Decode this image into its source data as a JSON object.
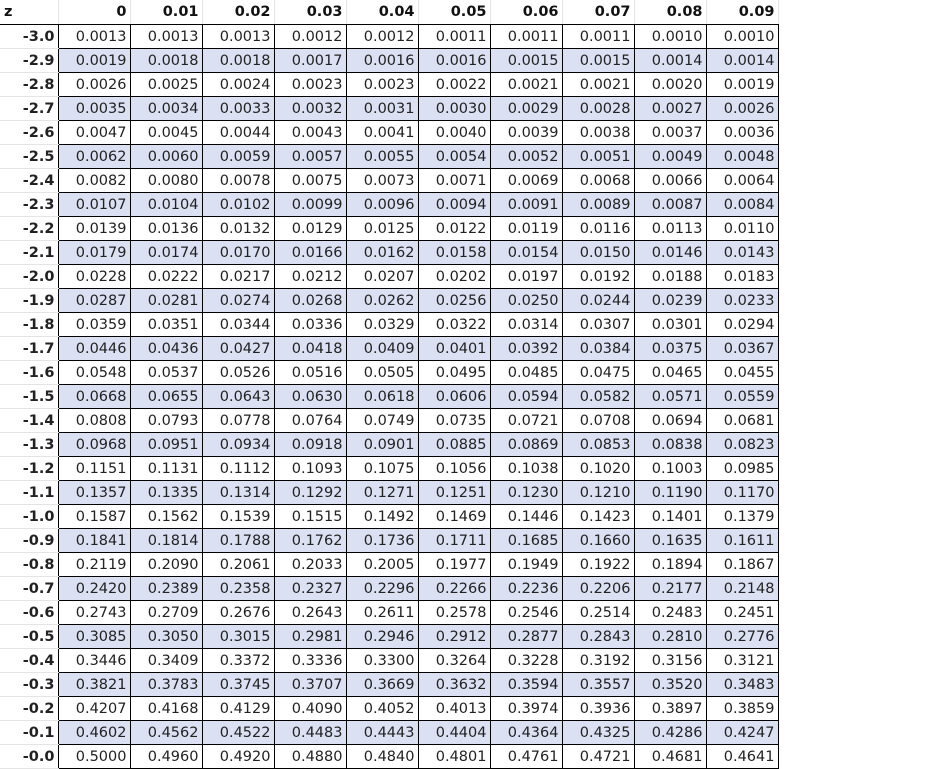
{
  "header": {
    "z_label": "z",
    "columns": [
      "0",
      "0.01",
      "0.02",
      "0.03",
      "0.04",
      "0.05",
      "0.06",
      "0.07",
      "0.08",
      "0.09"
    ]
  },
  "colors": {
    "alt_row": "#dbe0f3",
    "border": "#000000"
  },
  "rows": [
    {
      "z": "-3.0",
      "values": [
        "0.0013",
        "0.0013",
        "0.0013",
        "0.0012",
        "0.0012",
        "0.0011",
        "0.0011",
        "0.0011",
        "0.0010",
        "0.0010"
      ]
    },
    {
      "z": "-2.9",
      "values": [
        "0.0019",
        "0.0018",
        "0.0018",
        "0.0017",
        "0.0016",
        "0.0016",
        "0.0015",
        "0.0015",
        "0.0014",
        "0.0014"
      ]
    },
    {
      "z": "-2.8",
      "values": [
        "0.0026",
        "0.0025",
        "0.0024",
        "0.0023",
        "0.0023",
        "0.0022",
        "0.0021",
        "0.0021",
        "0.0020",
        "0.0019"
      ]
    },
    {
      "z": "-2.7",
      "values": [
        "0.0035",
        "0.0034",
        "0.0033",
        "0.0032",
        "0.0031",
        "0.0030",
        "0.0029",
        "0.0028",
        "0.0027",
        "0.0026"
      ]
    },
    {
      "z": "-2.6",
      "values": [
        "0.0047",
        "0.0045",
        "0.0044",
        "0.0043",
        "0.0041",
        "0.0040",
        "0.0039",
        "0.0038",
        "0.0037",
        "0.0036"
      ]
    },
    {
      "z": "-2.5",
      "values": [
        "0.0062",
        "0.0060",
        "0.0059",
        "0.0057",
        "0.0055",
        "0.0054",
        "0.0052",
        "0.0051",
        "0.0049",
        "0.0048"
      ]
    },
    {
      "z": "-2.4",
      "values": [
        "0.0082",
        "0.0080",
        "0.0078",
        "0.0075",
        "0.0073",
        "0.0071",
        "0.0069",
        "0.0068",
        "0.0066",
        "0.0064"
      ]
    },
    {
      "z": "-2.3",
      "values": [
        "0.0107",
        "0.0104",
        "0.0102",
        "0.0099",
        "0.0096",
        "0.0094",
        "0.0091",
        "0.0089",
        "0.0087",
        "0.0084"
      ]
    },
    {
      "z": "-2.2",
      "values": [
        "0.0139",
        "0.0136",
        "0.0132",
        "0.0129",
        "0.0125",
        "0.0122",
        "0.0119",
        "0.0116",
        "0.0113",
        "0.0110"
      ]
    },
    {
      "z": "-2.1",
      "values": [
        "0.0179",
        "0.0174",
        "0.0170",
        "0.0166",
        "0.0162",
        "0.0158",
        "0.0154",
        "0.0150",
        "0.0146",
        "0.0143"
      ]
    },
    {
      "z": "-2.0",
      "values": [
        "0.0228",
        "0.0222",
        "0.0217",
        "0.0212",
        "0.0207",
        "0.0202",
        "0.0197",
        "0.0192",
        "0.0188",
        "0.0183"
      ]
    },
    {
      "z": "-1.9",
      "values": [
        "0.0287",
        "0.0281",
        "0.0274",
        "0.0268",
        "0.0262",
        "0.0256",
        "0.0250",
        "0.0244",
        "0.0239",
        "0.0233"
      ]
    },
    {
      "z": "-1.8",
      "values": [
        "0.0359",
        "0.0351",
        "0.0344",
        "0.0336",
        "0.0329",
        "0.0322",
        "0.0314",
        "0.0307",
        "0.0301",
        "0.0294"
      ]
    },
    {
      "z": "-1.7",
      "values": [
        "0.0446",
        "0.0436",
        "0.0427",
        "0.0418",
        "0.0409",
        "0.0401",
        "0.0392",
        "0.0384",
        "0.0375",
        "0.0367"
      ]
    },
    {
      "z": "-1.6",
      "values": [
        "0.0548",
        "0.0537",
        "0.0526",
        "0.0516",
        "0.0505",
        "0.0495",
        "0.0485",
        "0.0475",
        "0.0465",
        "0.0455"
      ]
    },
    {
      "z": "-1.5",
      "values": [
        "0.0668",
        "0.0655",
        "0.0643",
        "0.0630",
        "0.0618",
        "0.0606",
        "0.0594",
        "0.0582",
        "0.0571",
        "0.0559"
      ]
    },
    {
      "z": "-1.4",
      "values": [
        "0.0808",
        "0.0793",
        "0.0778",
        "0.0764",
        "0.0749",
        "0.0735",
        "0.0721",
        "0.0708",
        "0.0694",
        "0.0681"
      ]
    },
    {
      "z": "-1.3",
      "values": [
        "0.0968",
        "0.0951",
        "0.0934",
        "0.0918",
        "0.0901",
        "0.0885",
        "0.0869",
        "0.0853",
        "0.0838",
        "0.0823"
      ]
    },
    {
      "z": "-1.2",
      "values": [
        "0.1151",
        "0.1131",
        "0.1112",
        "0.1093",
        "0.1075",
        "0.1056",
        "0.1038",
        "0.1020",
        "0.1003",
        "0.0985"
      ]
    },
    {
      "z": "-1.1",
      "values": [
        "0.1357",
        "0.1335",
        "0.1314",
        "0.1292",
        "0.1271",
        "0.1251",
        "0.1230",
        "0.1210",
        "0.1190",
        "0.1170"
      ]
    },
    {
      "z": "-1.0",
      "values": [
        "0.1587",
        "0.1562",
        "0.1539",
        "0.1515",
        "0.1492",
        "0.1469",
        "0.1446",
        "0.1423",
        "0.1401",
        "0.1379"
      ]
    },
    {
      "z": "-0.9",
      "values": [
        "0.1841",
        "0.1814",
        "0.1788",
        "0.1762",
        "0.1736",
        "0.1711",
        "0.1685",
        "0.1660",
        "0.1635",
        "0.1611"
      ]
    },
    {
      "z": "-0.8",
      "values": [
        "0.2119",
        "0.2090",
        "0.2061",
        "0.2033",
        "0.2005",
        "0.1977",
        "0.1949",
        "0.1922",
        "0.1894",
        "0.1867"
      ]
    },
    {
      "z": "-0.7",
      "values": [
        "0.2420",
        "0.2389",
        "0.2358",
        "0.2327",
        "0.2296",
        "0.2266",
        "0.2236",
        "0.2206",
        "0.2177",
        "0.2148"
      ]
    },
    {
      "z": "-0.6",
      "values": [
        "0.2743",
        "0.2709",
        "0.2676",
        "0.2643",
        "0.2611",
        "0.2578",
        "0.2546",
        "0.2514",
        "0.2483",
        "0.2451"
      ]
    },
    {
      "z": "-0.5",
      "values": [
        "0.3085",
        "0.3050",
        "0.3015",
        "0.2981",
        "0.2946",
        "0.2912",
        "0.2877",
        "0.2843",
        "0.2810",
        "0.2776"
      ]
    },
    {
      "z": "-0.4",
      "values": [
        "0.3446",
        "0.3409",
        "0.3372",
        "0.3336",
        "0.3300",
        "0.3264",
        "0.3228",
        "0.3192",
        "0.3156",
        "0.3121"
      ]
    },
    {
      "z": "-0.3",
      "values": [
        "0.3821",
        "0.3783",
        "0.3745",
        "0.3707",
        "0.3669",
        "0.3632",
        "0.3594",
        "0.3557",
        "0.3520",
        "0.3483"
      ]
    },
    {
      "z": "-0.2",
      "values": [
        "0.4207",
        "0.4168",
        "0.4129",
        "0.4090",
        "0.4052",
        "0.4013",
        "0.3974",
        "0.3936",
        "0.3897",
        "0.3859"
      ]
    },
    {
      "z": "-0.1",
      "values": [
        "0.4602",
        "0.4562",
        "0.4522",
        "0.4483",
        "0.4443",
        "0.4404",
        "0.4364",
        "0.4325",
        "0.4286",
        "0.4247"
      ]
    },
    {
      "z": "-0.0",
      "values": [
        "0.5000",
        "0.4960",
        "0.4920",
        "0.4880",
        "0.4840",
        "0.4801",
        "0.4761",
        "0.4721",
        "0.4681",
        "0.4641"
      ]
    }
  ]
}
